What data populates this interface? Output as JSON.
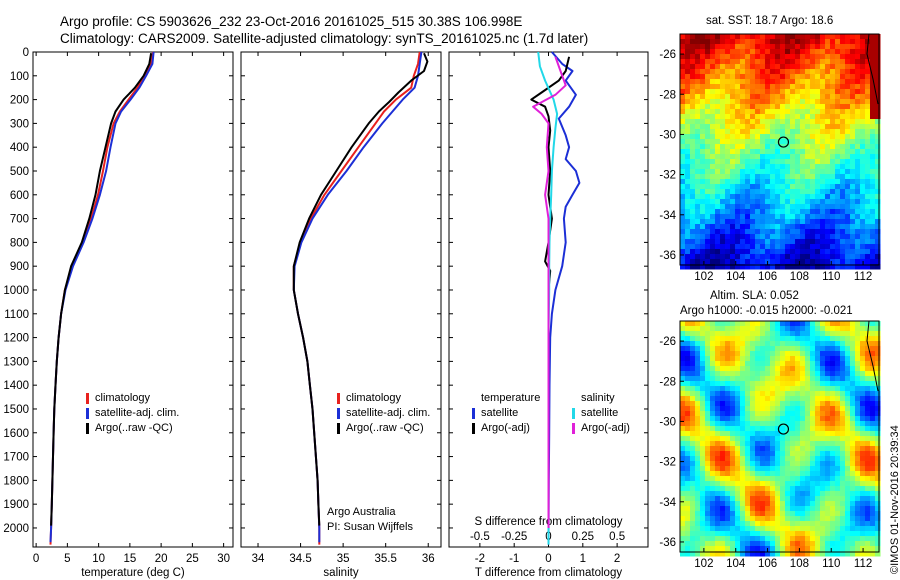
{
  "header": {
    "line1": "Argo profile: CS 5903626_232 23-Oct-2016 20161025_515 30.38S 106.998E",
    "line2": "Climatology: CARS2009. Satellite-adjusted climatology: synTS_20161025.nc (1.7d later)"
  },
  "colors": {
    "climatology": "#e8211e",
    "satellite": "#1c2fd6",
    "argo": "#000000",
    "sal_satellite": "#22d8e8",
    "sal_argo": "#e020d8"
  },
  "chart_data": [
    {
      "type": "line",
      "panel": "temperature",
      "xlabel": "temperature (deg C)",
      "ylabel": "",
      "xlim": [
        -0.5,
        31.5
      ],
      "ylim": [
        2080,
        0
      ],
      "xticks": [
        0,
        5,
        10,
        15,
        20,
        25,
        30
      ],
      "yticks": [
        0,
        100,
        200,
        300,
        400,
        500,
        600,
        700,
        800,
        900,
        1000,
        1100,
        1200,
        1300,
        1400,
        1500,
        1600,
        1700,
        1800,
        1900,
        2000
      ],
      "legend": [
        "climatology",
        "satellite-adj. clim.",
        "Argo(..raw -QC)"
      ],
      "series": [
        {
          "name": "climatology",
          "color_key": "climatology",
          "points": [
            [
              18.7,
              0
            ],
            [
              18.4,
              50
            ],
            [
              17.3,
              100
            ],
            [
              16.2,
              150
            ],
            [
              14.8,
              200
            ],
            [
              13.4,
              250
            ],
            [
              12.4,
              300
            ],
            [
              11.4,
              400
            ],
            [
              10.7,
              500
            ],
            [
              9.9,
              600
            ],
            [
              8.8,
              700
            ],
            [
              7.5,
              800
            ],
            [
              5.8,
              900
            ],
            [
              4.6,
              1000
            ],
            [
              4.0,
              1100
            ],
            [
              3.6,
              1200
            ],
            [
              3.3,
              1300
            ],
            [
              3.1,
              1400
            ],
            [
              2.9,
              1500
            ],
            [
              2.8,
              1600
            ],
            [
              2.7,
              1700
            ],
            [
              2.6,
              1800
            ],
            [
              2.5,
              1900
            ],
            [
              2.4,
              2000
            ],
            [
              2.3,
              2070
            ]
          ]
        },
        {
          "name": "satellite-adj. clim.",
          "color_key": "satellite",
          "points": [
            [
              18.8,
              0
            ],
            [
              18.6,
              50
            ],
            [
              17.6,
              100
            ],
            [
              16.5,
              150
            ],
            [
              15.1,
              200
            ],
            [
              13.6,
              250
            ],
            [
              12.7,
              300
            ],
            [
              11.9,
              400
            ],
            [
              11.2,
              500
            ],
            [
              10.2,
              600
            ],
            [
              9.0,
              700
            ],
            [
              7.6,
              800
            ],
            [
              5.9,
              900
            ],
            [
              4.7,
              1000
            ],
            [
              4.0,
              1100
            ],
            [
              3.6,
              1200
            ],
            [
              3.3,
              1300
            ],
            [
              3.1,
              1400
            ],
            [
              2.9,
              1500
            ],
            [
              2.8,
              1600
            ],
            [
              2.7,
              1700
            ],
            [
              2.6,
              1800
            ],
            [
              2.5,
              1900
            ],
            [
              2.4,
              2000
            ],
            [
              2.3,
              2060
            ]
          ]
        },
        {
          "name": "Argo(..raw -QC)",
          "color_key": "argo",
          "points": [
            [
              18.4,
              5
            ],
            [
              18.1,
              50
            ],
            [
              17.2,
              100
            ],
            [
              15.8,
              150
            ],
            [
              14.0,
              200
            ],
            [
              12.7,
              250
            ],
            [
              12.0,
              300
            ],
            [
              11.1,
              400
            ],
            [
              10.2,
              500
            ],
            [
              9.5,
              600
            ],
            [
              8.5,
              700
            ],
            [
              7.3,
              800
            ],
            [
              5.6,
              900
            ],
            [
              4.6,
              1000
            ],
            [
              4.0,
              1100
            ],
            [
              3.6,
              1200
            ],
            [
              3.3,
              1300
            ],
            [
              3.1,
              1400
            ],
            [
              2.9,
              1500
            ],
            [
              2.8,
              1600
            ],
            [
              2.7,
              1700
            ],
            [
              2.6,
              1800
            ],
            [
              2.5,
              1900
            ],
            [
              2.4,
              1990
            ]
          ]
        }
      ]
    },
    {
      "type": "line",
      "panel": "salinity",
      "xlabel": "salinity",
      "ylabel": "",
      "xlim": [
        33.8,
        36.15
      ],
      "ylim": [
        2080,
        0
      ],
      "xticks": [
        34,
        34.5,
        35,
        35.5,
        36
      ],
      "legend": [
        "climatology",
        "satellite-adj. clim.",
        "Argo(..raw -QC)"
      ],
      "annotation": [
        "Argo Australia",
        "PI: Susan Wijffels"
      ],
      "series": [
        {
          "name": "climatology",
          "color_key": "climatology",
          "points": [
            [
              35.9,
              0
            ],
            [
              35.88,
              50
            ],
            [
              35.83,
              100
            ],
            [
              35.8,
              150
            ],
            [
              35.62,
              200
            ],
            [
              35.48,
              250
            ],
            [
              35.38,
              300
            ],
            [
              35.18,
              400
            ],
            [
              34.98,
              500
            ],
            [
              34.78,
              600
            ],
            [
              34.62,
              700
            ],
            [
              34.5,
              800
            ],
            [
              34.42,
              900
            ],
            [
              34.42,
              1000
            ],
            [
              34.47,
              1100
            ],
            [
              34.53,
              1200
            ],
            [
              34.58,
              1300
            ],
            [
              34.61,
              1400
            ],
            [
              34.64,
              1500
            ],
            [
              34.66,
              1600
            ],
            [
              34.68,
              1700
            ],
            [
              34.7,
              1800
            ],
            [
              34.71,
              1900
            ],
            [
              34.72,
              2000
            ],
            [
              34.72,
              2070
            ]
          ]
        },
        {
          "name": "satellite-adj. clim.",
          "color_key": "satellite",
          "points": [
            [
              35.92,
              0
            ],
            [
              35.9,
              50
            ],
            [
              35.88,
              100
            ],
            [
              35.84,
              150
            ],
            [
              35.7,
              200
            ],
            [
              35.58,
              250
            ],
            [
              35.46,
              300
            ],
            [
              35.24,
              400
            ],
            [
              35.04,
              500
            ],
            [
              34.82,
              600
            ],
            [
              34.64,
              700
            ],
            [
              34.51,
              800
            ],
            [
              34.43,
              900
            ],
            [
              34.42,
              1000
            ],
            [
              34.47,
              1100
            ],
            [
              34.53,
              1200
            ],
            [
              34.58,
              1300
            ],
            [
              34.61,
              1400
            ],
            [
              34.64,
              1500
            ],
            [
              34.66,
              1600
            ],
            [
              34.68,
              1700
            ],
            [
              34.7,
              1800
            ],
            [
              34.71,
              1900
            ],
            [
              34.72,
              2000
            ],
            [
              34.72,
              2060
            ]
          ]
        },
        {
          "name": "Argo(..raw -QC)",
          "color_key": "argo",
          "points": [
            [
              35.95,
              5
            ],
            [
              35.99,
              40
            ],
            [
              35.95,
              80
            ],
            [
              35.8,
              120
            ],
            [
              35.65,
              170
            ],
            [
              35.54,
              210
            ],
            [
              35.42,
              250
            ],
            [
              35.3,
              300
            ],
            [
              35.1,
              400
            ],
            [
              34.92,
              500
            ],
            [
              34.74,
              600
            ],
            [
              34.6,
              700
            ],
            [
              34.49,
              800
            ],
            [
              34.42,
              900
            ],
            [
              34.42,
              1000
            ],
            [
              34.47,
              1100
            ],
            [
              34.53,
              1200
            ],
            [
              34.58,
              1300
            ],
            [
              34.61,
              1400
            ],
            [
              34.64,
              1500
            ],
            [
              34.66,
              1600
            ],
            [
              34.68,
              1700
            ],
            [
              34.7,
              1800
            ],
            [
              34.71,
              1900
            ],
            [
              34.72,
              1990
            ]
          ]
        }
      ]
    },
    {
      "type": "line",
      "panel": "difference",
      "xlabel": "T difference from climatology",
      "xlabel_top": "S difference from climatology",
      "xlim": [
        -2.9,
        2.9
      ],
      "ylim": [
        2080,
        0
      ],
      "xticks": [
        -2,
        -1,
        0,
        1,
        2
      ],
      "xticklabels_top": [
        "-0.5",
        "-0.25",
        "0",
        "0.25",
        "0.5"
      ],
      "legend_headers": [
        "temperature",
        "salinity"
      ],
      "legend_left": [
        "satellite",
        "Argo(-adj)"
      ],
      "legend_right": [
        "satellite",
        "Argo(-adj)"
      ],
      "series": [
        {
          "name": "temperature satellite",
          "color_key": "satellite",
          "points": [
            [
              0.1,
              0
            ],
            [
              0.4,
              50
            ],
            [
              0.7,
              80
            ],
            [
              0.5,
              120
            ],
            [
              0.8,
              180
            ],
            [
              0.6,
              230
            ],
            [
              0.3,
              280
            ],
            [
              0.5,
              350
            ],
            [
              0.6,
              400
            ],
            [
              0.5,
              450
            ],
            [
              0.8,
              500
            ],
            [
              0.9,
              550
            ],
            [
              0.7,
              600
            ],
            [
              0.5,
              650
            ],
            [
              0.45,
              700
            ],
            [
              0.5,
              800
            ],
            [
              0.4,
              900
            ],
            [
              0.2,
              1000
            ],
            [
              0.1,
              1100
            ],
            [
              0.05,
              1200
            ],
            [
              0.03,
              1400
            ],
            [
              0.02,
              1600
            ],
            [
              0.01,
              1800
            ],
            [
              0.0,
              2070
            ]
          ]
        },
        {
          "name": "temperature Argo(-adj)",
          "color_key": "argo",
          "points": [
            [
              0.6,
              20
            ],
            [
              0.5,
              80
            ],
            [
              0.3,
              120
            ],
            [
              -0.2,
              170
            ],
            [
              -0.5,
              200
            ],
            [
              -0.1,
              230
            ],
            [
              0.0,
              270
            ],
            [
              0.05,
              330
            ],
            [
              0.0,
              400
            ],
            [
              0.05,
              500
            ],
            [
              0.0,
              600
            ],
            [
              0.1,
              700
            ],
            [
              0.0,
              800
            ],
            [
              -0.1,
              880
            ],
            [
              0.05,
              920
            ],
            [
              0.0,
              1000
            ],
            [
              0.0,
              1200
            ],
            [
              0.0,
              1600
            ],
            [
              0.0,
              2000
            ]
          ]
        },
        {
          "name": "salinity satellite",
          "color_key": "sal_satellite",
          "points": [
            [
              -0.3,
              0
            ],
            [
              -0.25,
              60
            ],
            [
              -0.1,
              120
            ],
            [
              0.15,
              200
            ],
            [
              0.25,
              260
            ],
            [
              0.2,
              320
            ],
            [
              0.15,
              400
            ],
            [
              0.1,
              500
            ],
            [
              0.08,
              600
            ],
            [
              0.05,
              700
            ],
            [
              0.03,
              800
            ],
            [
              0.02,
              900
            ],
            [
              0.02,
              1000
            ],
            [
              0.0,
              1200
            ],
            [
              0.0,
              1600
            ],
            [
              0.0,
              2070
            ]
          ]
        },
        {
          "name": "salinity Argo(-adj)",
          "color_key": "sal_argo",
          "points": [
            [
              0.2,
              20
            ],
            [
              0.35,
              80
            ],
            [
              0.5,
              140
            ],
            [
              0.2,
              180
            ],
            [
              -0.45,
              230
            ],
            [
              -0.2,
              260
            ],
            [
              0.0,
              300
            ],
            [
              -0.05,
              400
            ],
            [
              0.0,
              500
            ],
            [
              -0.1,
              600
            ],
            [
              0.0,
              700
            ],
            [
              0.0,
              800
            ],
            [
              0.0,
              900
            ],
            [
              0.0,
              1000
            ],
            [
              0.0,
              1200
            ],
            [
              0.0,
              1600
            ],
            [
              0.0,
              2000
            ]
          ]
        }
      ]
    }
  ],
  "maps": {
    "sst": {
      "title": "sat. SST: 18.7 Argo: 18.6",
      "xticks": [
        "102",
        "104",
        "106",
        "108",
        "110",
        "112"
      ],
      "yticks": [
        "-26",
        "-28",
        "-30",
        "-32",
        "-34",
        "-36"
      ],
      "xlim": [
        100.5,
        113
      ],
      "ylim": [
        -36.5,
        -25
      ]
    },
    "sla": {
      "title1": "Altim. SLA: 0.052",
      "title2": "Argo h1000: -0.015 h2000: -0.021",
      "xticks": [
        "102",
        "104",
        "106",
        "108",
        "110",
        "112"
      ],
      "yticks": [
        "-26",
        "-28",
        "-30",
        "-32",
        "-34",
        "-36"
      ],
      "xlim": [
        100.5,
        113
      ],
      "ylim": [
        -36.5,
        -25
      ]
    },
    "float_position": {
      "lon": 106.998,
      "lat": -30.38
    }
  },
  "credit": "©IMOS 01-Nov-2016 20:39:34"
}
